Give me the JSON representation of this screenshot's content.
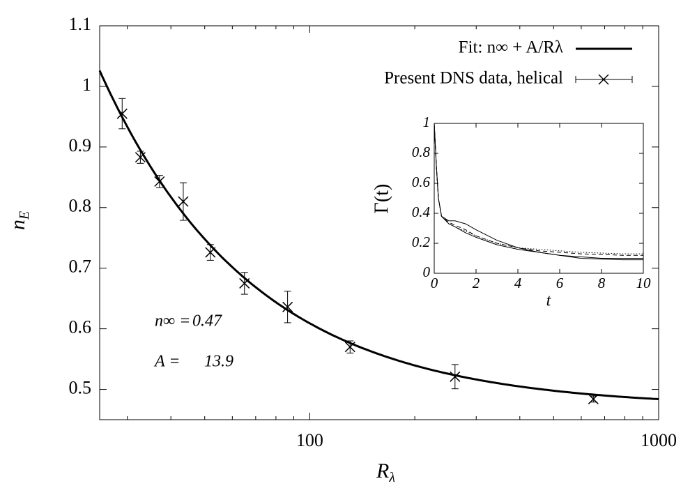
{
  "chart_data": [
    {
      "type": "scatter",
      "xscale": "log",
      "xlim": [
        25,
        1000
      ],
      "ylim": [
        0.45,
        1.1
      ],
      "xticks": [
        100,
        1000
      ],
      "xminorticks": [
        30,
        40,
        50,
        60,
        70,
        80,
        90,
        200,
        300,
        400,
        500,
        600,
        700,
        800,
        900
      ],
      "yticks": [
        0.5,
        0.6,
        0.7,
        0.8,
        0.9,
        1,
        1.1
      ],
      "xlabel": {
        "base": "R",
        "sub": "λ"
      },
      "ylabel": {
        "base": "n",
        "sub": "E"
      },
      "legend": "upper right",
      "fit": {
        "name": "Fit: n∞ + A/Rλ",
        "color": "#000000",
        "params": [
          {
            "text": "n∞ =",
            "value": 0.47
          },
          {
            "text": "A =",
            "value": 13.9
          }
        ]
      },
      "series": [
        {
          "name": "Present DNS data, helical",
          "color": "#000000",
          "x": [
            29.0,
            32.7,
            37.1,
            43.4,
            51.9,
            65.0,
            86.4,
            130.5,
            260.8,
            650
          ],
          "values": [
            0.955,
            0.883,
            0.843,
            0.81,
            0.726,
            0.675,
            0.636,
            0.57,
            0.521,
            0.484
          ],
          "errors": [
            0.025,
            0.01,
            0.01,
            0.031,
            0.013,
            0.018,
            0.026,
            0.01,
            0.02,
            0.005
          ]
        }
      ]
    },
    {
      "type": "line",
      "xlim": [
        0,
        10
      ],
      "ylim": [
        0,
        1
      ],
      "xticks": [
        0,
        2,
        4,
        6,
        8,
        10
      ],
      "yticks": [
        0,
        0.2,
        0.4,
        0.6,
        0.8,
        1
      ],
      "xlabel": "t",
      "ylabel": "Γ(t)",
      "x": [
        0,
        0.1,
        0.2,
        0.35,
        0.7,
        1,
        1.5,
        2,
        3,
        4,
        5,
        6,
        7,
        8,
        9,
        10
      ],
      "series": [
        {
          "color": "#000000",
          "linestyle": "solid",
          "values": [
            1.0,
            0.72,
            0.5,
            0.38,
            0.35,
            0.35,
            0.33,
            0.29,
            0.22,
            0.17,
            0.14,
            0.12,
            0.1,
            0.095,
            0.09,
            0.09
          ]
        },
        {
          "color": "#000000",
          "linestyle": "dashed",
          "values": [
            1.0,
            0.72,
            0.5,
            0.38,
            0.34,
            0.32,
            0.29,
            0.25,
            0.2,
            0.17,
            0.15,
            0.14,
            0.13,
            0.125,
            0.12,
            0.12
          ]
        },
        {
          "color": "#000000",
          "linestyle": "dotted",
          "values": [
            1.0,
            0.72,
            0.5,
            0.38,
            0.33,
            0.31,
            0.28,
            0.25,
            0.2,
            0.17,
            0.16,
            0.15,
            0.14,
            0.135,
            0.13,
            0.13
          ]
        },
        {
          "color": "#000000",
          "linestyle": "solid",
          "values": [
            1.0,
            0.72,
            0.5,
            0.38,
            0.33,
            0.31,
            0.27,
            0.24,
            0.19,
            0.16,
            0.14,
            0.12,
            0.11,
            0.1,
            0.1,
            0.1
          ]
        }
      ]
    }
  ]
}
